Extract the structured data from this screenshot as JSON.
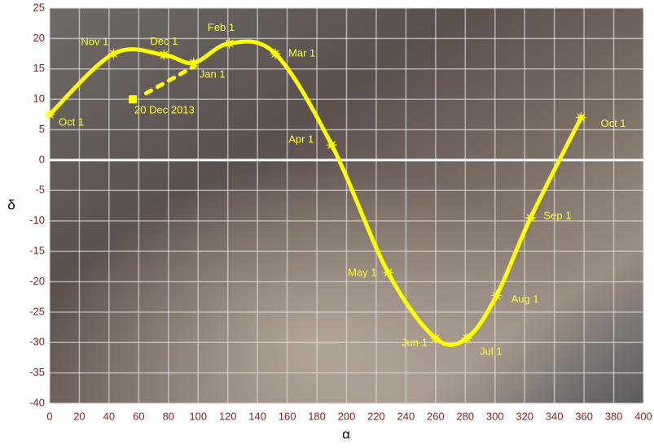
{
  "chart_data": {
    "type": "line",
    "xlabel": "α",
    "ylabel": "δ",
    "xlim": [
      0,
      400
    ],
    "ylim": [
      -40,
      25
    ],
    "xticks": [
      0,
      20,
      40,
      60,
      80,
      100,
      120,
      140,
      160,
      180,
      200,
      220,
      240,
      260,
      280,
      300,
      320,
      340,
      360,
      380,
      400
    ],
    "yticks": [
      -40,
      -35,
      -30,
      -25,
      -20,
      -15,
      -10,
      -5,
      0,
      5,
      10,
      15,
      20,
      25
    ],
    "grid": true,
    "series": [
      {
        "name": "path",
        "color": "#ffff00",
        "x": [
          0,
          43,
          77,
          97,
          121,
          152,
          190,
          228,
          260,
          281,
          301,
          324,
          358
        ],
        "values": [
          7.5,
          17.5,
          17.3,
          16,
          19.2,
          17.5,
          2.5,
          -18.5,
          -29.3,
          -29.3,
          -22.3,
          -9.5,
          7
        ],
        "labels": [
          "Oct 1",
          "Nov 1",
          "Dec 1",
          "Jan 1",
          "Feb 1",
          "Mar 1",
          "Apr 1",
          "May 1",
          "Jun 1",
          "Jul 1",
          "Aug 1",
          "Sep 1",
          "Oct 1"
        ]
      },
      {
        "name": "dashed",
        "color": "#ffff00",
        "dashed": true,
        "x": [
          65,
          98
        ],
        "values": [
          11,
          15.5
        ]
      }
    ],
    "annotation": {
      "x": 56,
      "y": 10,
      "label": "20 Dec 2013"
    }
  }
}
